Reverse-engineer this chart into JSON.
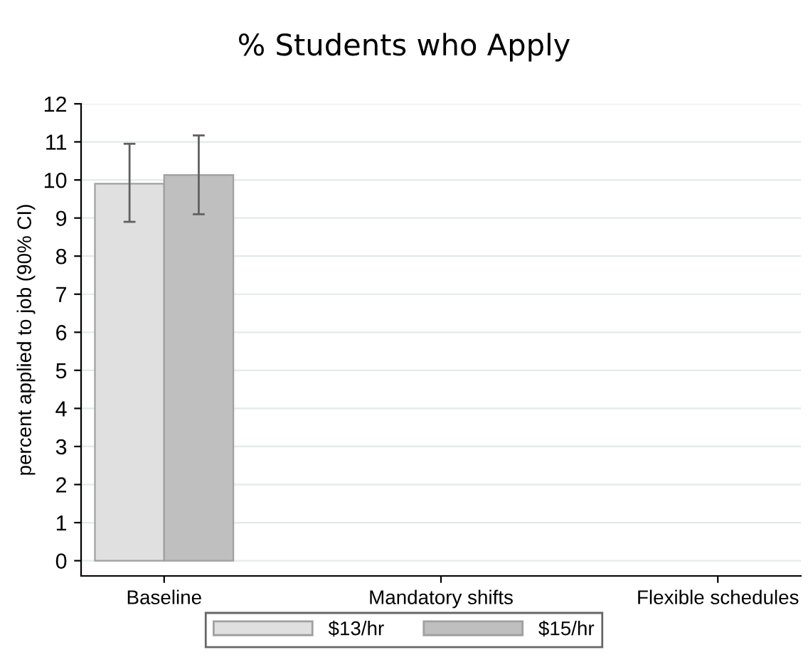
{
  "chart_data": {
    "type": "bar",
    "title": "% Students who Apply",
    "ylabel": "percent applied to job (90% CI)",
    "categories": [
      "Baseline",
      "Mandatory shifts",
      "Flexible schedules"
    ],
    "series": [
      {
        "name": "$13/hr",
        "color": "#e0e0e0",
        "values": [
          9.9,
          null,
          null
        ],
        "errors": [
          [
            8.9,
            10.95
          ],
          null,
          null
        ]
      },
      {
        "name": "$15/hr",
        "color": "#bfbfbf",
        "values": [
          10.13,
          null,
          null
        ],
        "errors": [
          [
            9.1,
            11.17
          ],
          null,
          null
        ]
      }
    ],
    "ylim": [
      -0.4,
      12
    ],
    "yticks": [
      0,
      1,
      2,
      3,
      4,
      5,
      6,
      7,
      8,
      9,
      10,
      11,
      12
    ],
    "grid": "y",
    "legend": "bottom"
  }
}
